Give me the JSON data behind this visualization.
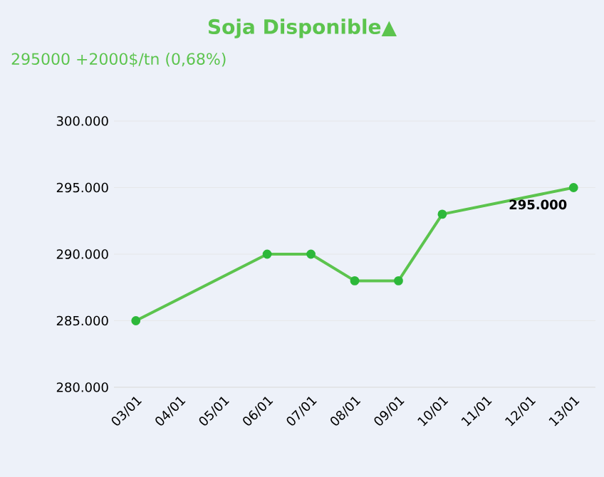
{
  "chart_data": {
    "type": "line",
    "title": "Soja Disponible▲",
    "subtitle": "295000 +2000$/tn (0,68%)",
    "categories": [
      "03/01",
      "04/01",
      "05/01",
      "06/01",
      "07/01",
      "08/01",
      "09/01",
      "10/01",
      "11/01",
      "12/01",
      "13/01"
    ],
    "series": [
      {
        "color": "#5cc44e",
        "values": [
          285000,
          null,
          null,
          290000,
          290000,
          288000,
          288000,
          293000,
          null,
          null,
          295000
        ]
      }
    ],
    "ylim": [
      280000,
      300000
    ],
    "yticks": [
      {
        "value": 280000,
        "label": "280.000"
      },
      {
        "value": 285000,
        "label": "285.000"
      },
      {
        "value": 290000,
        "label": "290.000"
      },
      {
        "value": 295000,
        "label": "295.000"
      },
      {
        "value": 300000,
        "label": "300.000"
      }
    ],
    "annotations": [
      {
        "text": "295.000",
        "x": "13/01",
        "y": 295000
      }
    ],
    "grid": "y",
    "marker": "circle",
    "line_style": "solid"
  }
}
